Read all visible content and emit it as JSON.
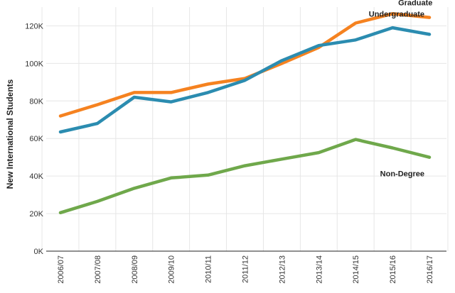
{
  "chart_data": {
    "type": "line",
    "title": "",
    "xlabel": "",
    "ylabel": "New International Students",
    "categories": [
      "2006/07",
      "2007/08",
      "2008/09",
      "2009/10",
      "2010/11",
      "2011/12",
      "2012/13",
      "2013/14",
      "2014/15",
      "2015/16",
      "2016/17"
    ],
    "y_ticks": [
      0,
      20000,
      40000,
      60000,
      80000,
      100000,
      120000
    ],
    "y_tick_labels": [
      "0K",
      "20K",
      "40K",
      "60K",
      "80K",
      "100K",
      "120K"
    ],
    "ylim": [
      0,
      130000
    ],
    "grid": true,
    "series": [
      {
        "name": "Graduate",
        "color": "#f58220",
        "values": [
          72000,
          78000,
          84500,
          84500,
          89000,
          92000,
          100000,
          108500,
          121500,
          126500,
          124500
        ]
      },
      {
        "name": "Undergraduate",
        "color": "#2b8cb0",
        "values": [
          63500,
          68000,
          82000,
          79500,
          84500,
          91000,
          101500,
          109500,
          112500,
          119000,
          115500
        ]
      },
      {
        "name": "Non-Degree",
        "color": "#6fa84b",
        "values": [
          20500,
          26500,
          33500,
          39000,
          40500,
          45500,
          49000,
          52500,
          59500,
          55000,
          50000
        ]
      }
    ]
  }
}
